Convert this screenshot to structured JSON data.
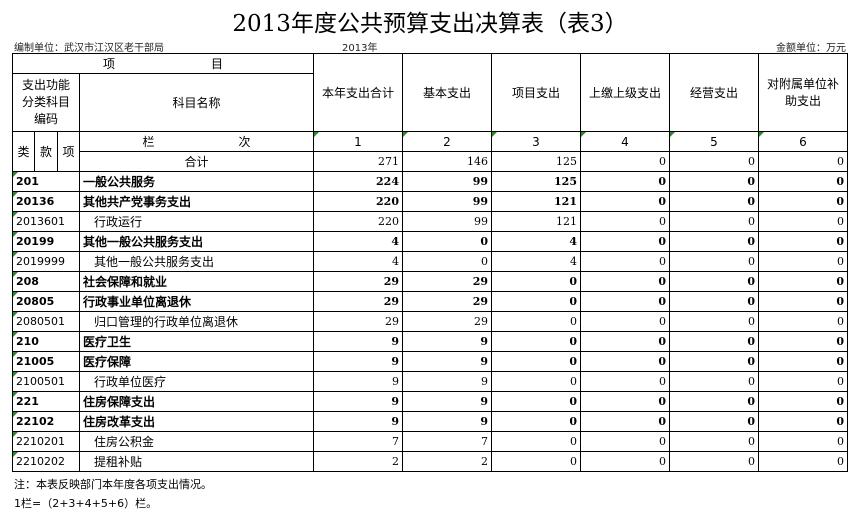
{
  "title": "2013年度公共预算支出决算表（表3）",
  "unit_org": "编制单位：武汉市江汉区老干部局",
  "year": "2013年",
  "money_unit": "金额单位：万元",
  "header": {
    "item": "项　　　　　　　　目",
    "code_group": "支出功能分类科目编码",
    "name": "科目名称",
    "cols": [
      "本年支出合计",
      "基本支出",
      "项目支出",
      "上缴上级支出",
      "经营支出",
      "对附属单位补助支出"
    ],
    "lei": "类",
    "kuan": "款",
    "xiang": "项",
    "lanci": "栏　　　　　　　次",
    "col_nums": [
      "1",
      "2",
      "3",
      "4",
      "5",
      "6"
    ]
  },
  "total": {
    "label": "合计",
    "values": [
      "271",
      "146",
      "125",
      "0",
      "0",
      "0"
    ]
  },
  "rows": [
    {
      "code": "201",
      "name": "一般公共服务",
      "bold": true,
      "values": [
        "224",
        "99",
        "125",
        "0",
        "0",
        "0"
      ]
    },
    {
      "code": "20136",
      "name": "其他共产党事务支出",
      "bold": true,
      "values": [
        "220",
        "99",
        "121",
        "0",
        "0",
        "0"
      ]
    },
    {
      "code": "2013601",
      "name": "行政运行",
      "bold": false,
      "values": [
        "220",
        "99",
        "121",
        "0",
        "0",
        "0"
      ]
    },
    {
      "code": "20199",
      "name": "其他一般公共服务支出",
      "bold": true,
      "values": [
        "4",
        "0",
        "4",
        "0",
        "0",
        "0"
      ]
    },
    {
      "code": "2019999",
      "name": "其他一般公共服务支出",
      "bold": false,
      "values": [
        "4",
        "0",
        "4",
        "0",
        "0",
        "0"
      ]
    },
    {
      "code": "208",
      "name": "社会保障和就业",
      "bold": true,
      "values": [
        "29",
        "29",
        "0",
        "0",
        "0",
        "0"
      ]
    },
    {
      "code": "20805",
      "name": "行政事业单位离退休",
      "bold": true,
      "values": [
        "29",
        "29",
        "0",
        "0",
        "0",
        "0"
      ]
    },
    {
      "code": "2080501",
      "name": "归口管理的行政单位离退休",
      "bold": false,
      "values": [
        "29",
        "29",
        "0",
        "0",
        "0",
        "0"
      ]
    },
    {
      "code": "210",
      "name": "医疗卫生",
      "bold": true,
      "values": [
        "9",
        "9",
        "0",
        "0",
        "0",
        "0"
      ]
    },
    {
      "code": "21005",
      "name": "医疗保障",
      "bold": true,
      "values": [
        "9",
        "9",
        "0",
        "0",
        "0",
        "0"
      ]
    },
    {
      "code": "2100501",
      "name": "行政单位医疗",
      "bold": false,
      "values": [
        "9",
        "9",
        "0",
        "0",
        "0",
        "0"
      ]
    },
    {
      "code": "221",
      "name": "住房保障支出",
      "bold": true,
      "values": [
        "9",
        "9",
        "0",
        "0",
        "0",
        "0"
      ]
    },
    {
      "code": "22102",
      "name": "住房改革支出",
      "bold": true,
      "values": [
        "9",
        "9",
        "0",
        "0",
        "0",
        "0"
      ]
    },
    {
      "code": "2210201",
      "name": "住房公积金",
      "bold": false,
      "values": [
        "7",
        "7",
        "0",
        "0",
        "0",
        "0"
      ]
    },
    {
      "code": "2210202",
      "name": "提租补贴",
      "bold": false,
      "values": [
        "2",
        "2",
        "0",
        "0",
        "0",
        "0"
      ]
    }
  ],
  "notes": [
    "注：本表反映部门本年度各项支出情况。",
    "1栏=（2+3+4+5+6）栏。"
  ]
}
